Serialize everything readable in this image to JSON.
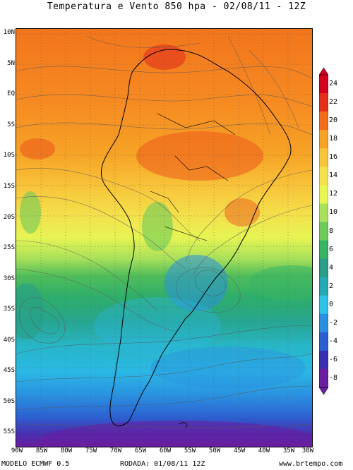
{
  "title": "Temperatura e Vento 850 hpa - 02/08/11 - 12Z",
  "lat_labels": [
    "10N",
    "5N",
    "EQ",
    "5S",
    "10S",
    "15S",
    "20S",
    "25S",
    "30S",
    "35S",
    "40S",
    "45S",
    "50S",
    "55S"
  ],
  "lon_labels": [
    "90W",
    "85W",
    "80W",
    "75W",
    "70W",
    "65W",
    "60W",
    "55W",
    "50W",
    "45W",
    "40W",
    "35W",
    "30W"
  ],
  "colorbar": {
    "labels": [
      "24",
      "22",
      "20",
      "18",
      "16",
      "14",
      "12",
      "10",
      "8",
      "6",
      "4",
      "2",
      "0",
      "-2",
      "-4",
      "-6",
      "-8"
    ],
    "colors": [
      "#d2001e",
      "#e3301a",
      "#f26d1d",
      "#f6a326",
      "#f8c53a",
      "#f3e24c",
      "#e8f553",
      "#a9e25a",
      "#6dcb5a",
      "#37b363",
      "#2a9e88",
      "#25a9b5",
      "#2ec0e6",
      "#2a8fe0",
      "#2c5fd0",
      "#3a2fb0",
      "#6a1ea0"
    ]
  },
  "footer": {
    "model": "MODELO ECMWF 0.5",
    "run": "RODADA: 01/08/11 12Z",
    "site": "www.brtempo.com"
  }
}
